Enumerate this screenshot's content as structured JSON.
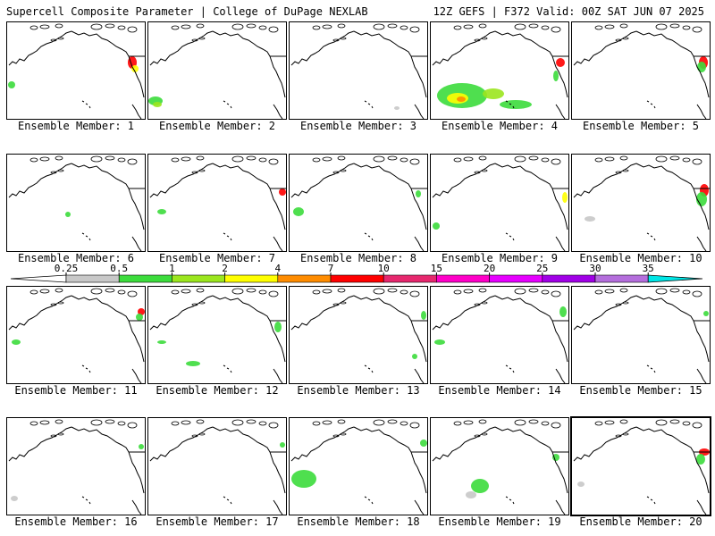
{
  "header": {
    "left": "Supercell Composite Parameter | College of DuPage NEXLAB",
    "right": "12Z GEFS | F372 Valid: 00Z SAT JUN 07 2025"
  },
  "members": [
    {
      "label": "Ensemble Member: 1"
    },
    {
      "label": "Ensemble Member: 2"
    },
    {
      "label": "Ensemble Member: 3"
    },
    {
      "label": "Ensemble Member: 4"
    },
    {
      "label": "Ensemble Member: 5"
    },
    {
      "label": "Ensemble Member: 6"
    },
    {
      "label": "Ensemble Member: 7"
    },
    {
      "label": "Ensemble Member: 8"
    },
    {
      "label": "Ensemble Member: 9"
    },
    {
      "label": "Ensemble Member: 10"
    },
    {
      "label": "Ensemble Member: 11"
    },
    {
      "label": "Ensemble Member: 12"
    },
    {
      "label": "Ensemble Member: 13"
    },
    {
      "label": "Ensemble Member: 14"
    },
    {
      "label": "Ensemble Member: 15"
    },
    {
      "label": "Ensemble Member: 16"
    },
    {
      "label": "Ensemble Member: 17"
    },
    {
      "label": "Ensemble Member: 18"
    },
    {
      "label": "Ensemble Member: 19"
    },
    {
      "label": "Ensemble Member: 20"
    }
  ],
  "colorbar": {
    "ticks": [
      "0.25",
      "0.5",
      "1",
      "2",
      "4",
      "7",
      "10",
      "15",
      "20",
      "25",
      "30",
      "35"
    ],
    "colors": [
      "#c8c8c8",
      "#3cdc3c",
      "#9be61e",
      "#ffff00",
      "#ff8c00",
      "#ff0000",
      "#e6286e",
      "#ff00c8",
      "#e600ff",
      "#a000e6",
      "#b46edc",
      "#00e6e6"
    ]
  }
}
